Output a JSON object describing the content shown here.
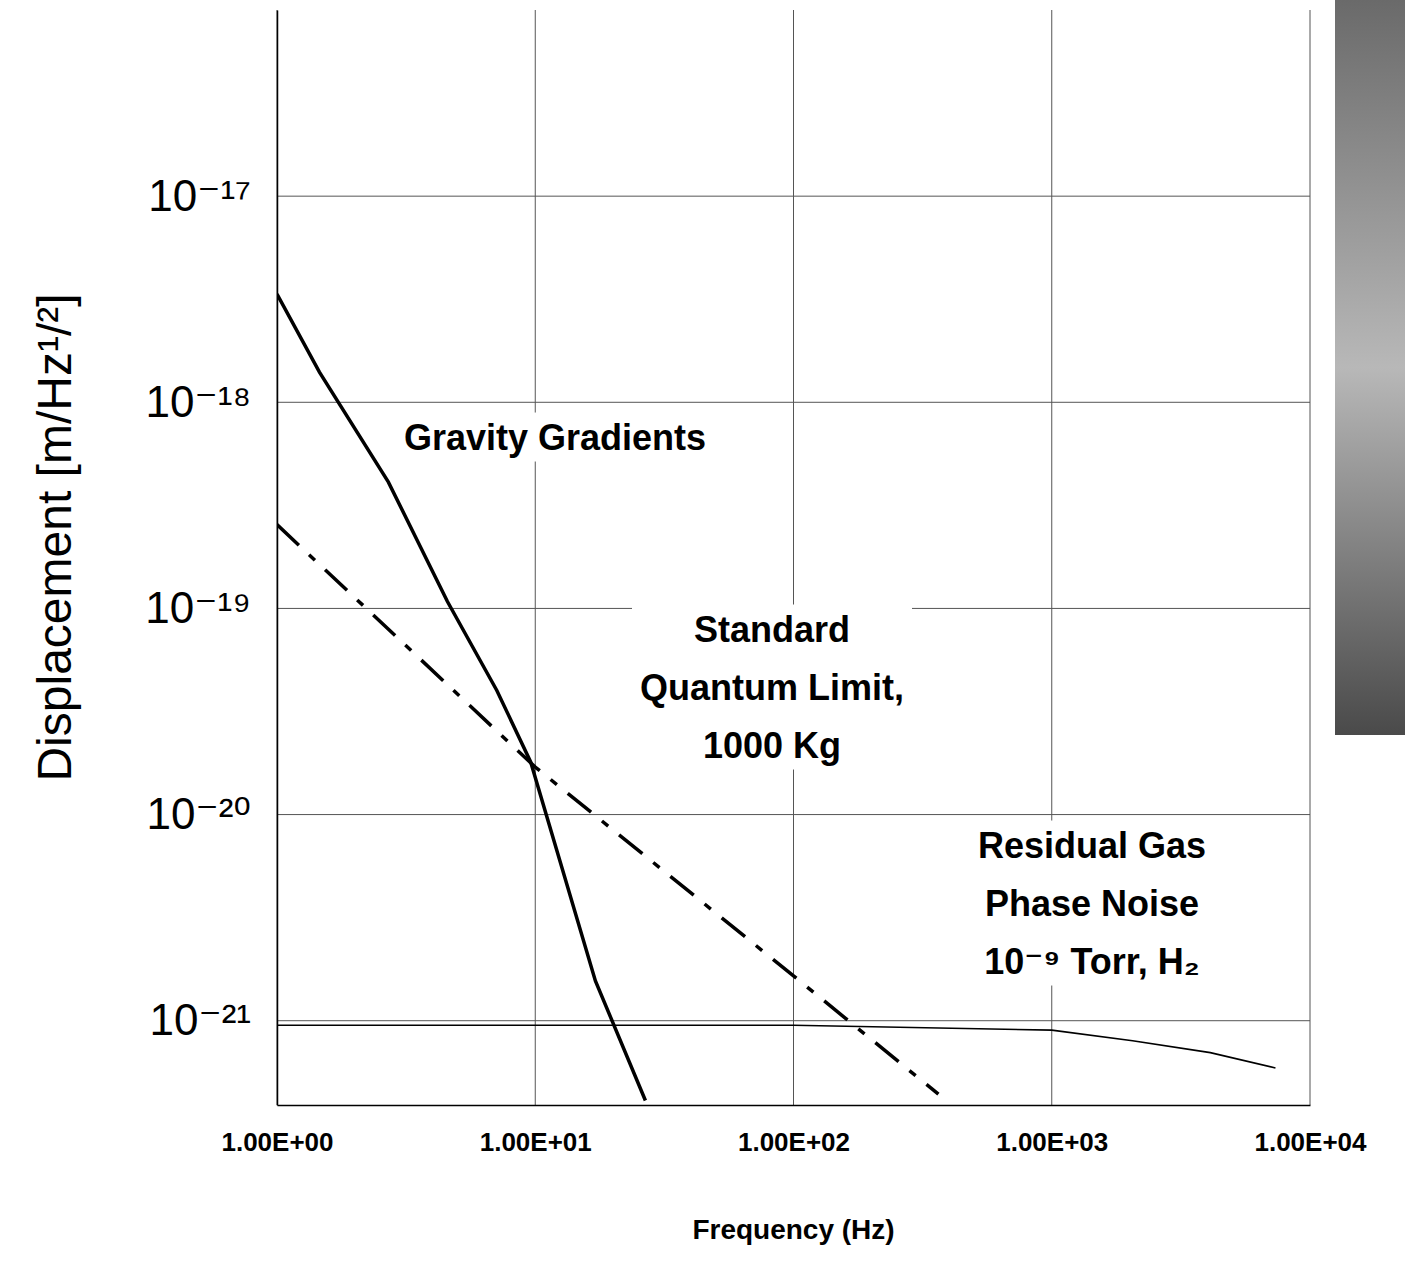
{
  "chart_data": {
    "type": "line",
    "x_label": "Frequency (Hz)",
    "y_label": "Displacement [m/Hz¹/²]",
    "log": true,
    "grid": true,
    "xlim": [
      1,
      10000
    ],
    "ylim": [
      3.9e-22,
      8e-17
    ],
    "xticks": [
      {
        "value": 1,
        "label": "1.00E+00"
      },
      {
        "value": 10,
        "label": "1.00E+01"
      },
      {
        "value": 100,
        "label": "1.00E+02"
      },
      {
        "value": 1000,
        "label": "1.00E+03"
      },
      {
        "value": 10000,
        "label": "1.00E+04"
      }
    ],
    "yticks": [
      {
        "value": 1e-21,
        "label": "10⁻²¹"
      },
      {
        "value": 1e-20,
        "label": "10⁻²⁰"
      },
      {
        "value": 1e-19,
        "label": "10⁻¹⁹"
      },
      {
        "value": 1e-18,
        "label": "10⁻¹⁸"
      },
      {
        "value": 1e-17,
        "label": "10⁻¹⁷"
      }
    ],
    "series": [
      {
        "x": [
          1,
          1.46,
          2.7,
          4.57,
          7.1,
          9.6,
          17.1,
          26.7
        ],
        "values": [
          3.35e-18,
          1.4e-18,
          4.1e-19,
          1.08e-19,
          4e-20,
          1.8e-20,
          1.56e-21,
          4.1e-22
        ],
        "color": "#000000",
        "line_style": "solid"
      },
      {
        "x": [
          1,
          10,
          100,
          364
        ],
        "values": [
          2.55e-19,
          1.7e-20,
          1.65e-21,
          4.4e-22
        ],
        "color": "#000000",
        "line_style": "dash-dot"
      },
      {
        "x": [
          1,
          100,
          1000,
          2056,
          4110,
          7350
        ],
        "values": [
          9.5e-22,
          9.5e-22,
          9e-22,
          8e-22,
          7e-22,
          5.9e-22
        ],
        "color": "#000000",
        "line_style": "solid"
      }
    ],
    "annotations": [
      {
        "text": [
          "Gravity Gradients"
        ]
      },
      {
        "text": [
          "Standard",
          "Quantum Limit,",
          "1000 Kg"
        ]
      },
      {
        "text": [
          "Residual Gas",
          "Phase Noise",
          "10⁻⁹ Torr, H₂"
        ]
      }
    ]
  }
}
